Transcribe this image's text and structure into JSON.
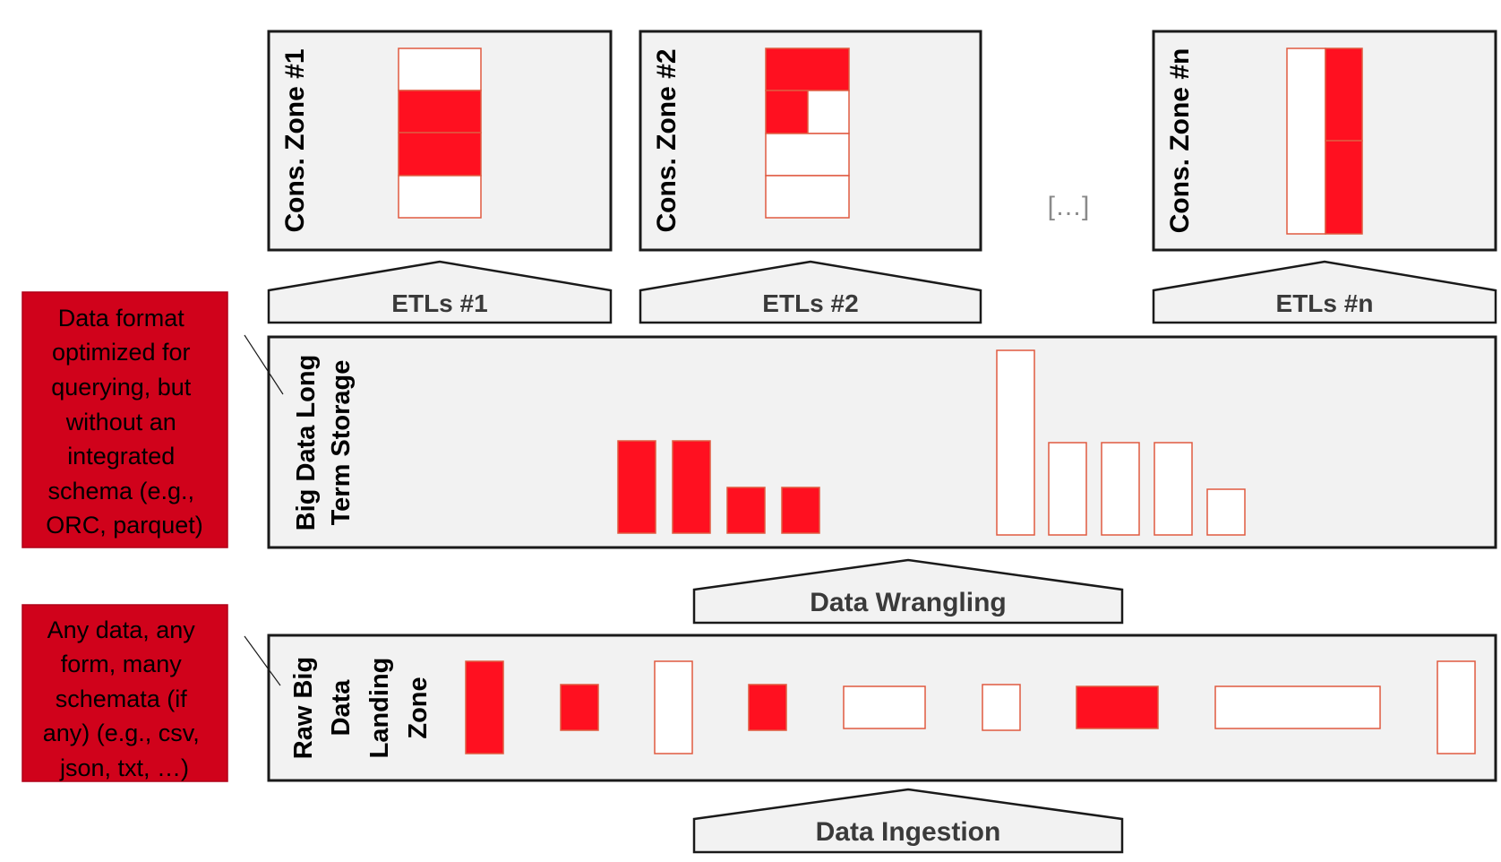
{
  "colors": {
    "panel_fill": "#f2f2f2",
    "panel_border": "#1a1a1a",
    "block_red": "#ff1020",
    "block_border": "#e05a40",
    "note_fill": "#d0021b",
    "label_text": "#3a3a3a",
    "ellipsis_text": "#8a8a8a"
  },
  "consumption_zones": [
    {
      "label": "Cons. Zone #1"
    },
    {
      "label": "Cons. Zone #2"
    },
    {
      "label": "Cons. Zone #n"
    }
  ],
  "ellipsis": "[…]",
  "etls": [
    {
      "label": "ETLs #1"
    },
    {
      "label": "ETLs #2"
    },
    {
      "label": "ETLs #n"
    }
  ],
  "storage_zone": {
    "label_line1": "Big Data Long",
    "label_line2": "Term Storage"
  },
  "wrangling": {
    "label": "Data Wrangling"
  },
  "landing_zone": {
    "label_lines": [
      "Raw Big",
      "Data",
      "Landing",
      "Zone"
    ]
  },
  "ingestion": {
    "label": "Data Ingestion"
  },
  "notes": {
    "storage_note": [
      "Data format",
      "optimized for",
      "querying, but",
      "without an",
      "integrated",
      "schema (e.g.,",
      "ORC, parquet)"
    ],
    "landing_note": [
      "Any data,  any",
      "form, many",
      "schemata (if",
      "any) (e.g., csv,",
      "json, txt, …)"
    ]
  }
}
